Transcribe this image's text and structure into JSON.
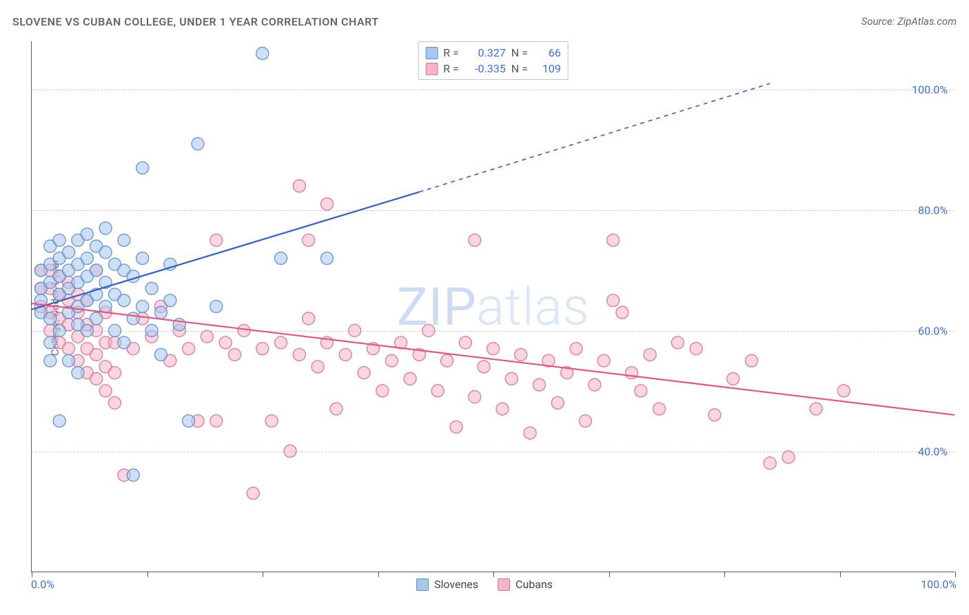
{
  "title": "SLOVENE VS CUBAN COLLEGE, UNDER 1 YEAR CORRELATION CHART",
  "source": "Source: ZipAtlas.com",
  "ylabel": "College, Under 1 year",
  "watermark_zip": "ZIP",
  "watermark_atlas": "atlas",
  "xmin_label": "0.0%",
  "xmax_label": "100.0%",
  "bottom_legend": [
    {
      "label": "Slovenes",
      "fill": "#a9c7eb",
      "stroke": "#5b8fd4"
    },
    {
      "label": "Cubans",
      "fill": "#f4b6c6",
      "stroke": "#e16f94"
    }
  ],
  "corr_box": [
    {
      "fill": "#a9c7eb",
      "stroke": "#5b8fd4",
      "R_label": "R =",
      "R": "0.327",
      "N_label": "N =",
      "N": "66"
    },
    {
      "fill": "#f4b6c6",
      "stroke": "#e16f94",
      "R_label": "R =",
      "R": "-0.335",
      "N_label": "N =",
      "N": "109"
    }
  ],
  "chart": {
    "type": "scatter",
    "xlim": [
      0,
      100
    ],
    "ylim": [
      20,
      108
    ],
    "x_ticks": [
      0,
      12.5,
      25,
      37.5,
      50,
      62.5,
      75,
      87.5,
      100
    ],
    "y_gridlines": [
      40,
      60,
      80,
      100
    ],
    "y_tick_labels": [
      "40.0%",
      "60.0%",
      "80.0%",
      "100.0%"
    ],
    "marker_radius": 9,
    "marker_opacity": 0.55,
    "line_width": 2.2,
    "series": {
      "slovenes": {
        "fill": "#a9c7eb",
        "stroke": "#5b8fd4",
        "line_color": "#2f60c4",
        "trend": {
          "x1": 0,
          "y1": 63.5,
          "x2_solid": 42,
          "y2_solid": 83,
          "x2_dash": 80,
          "y2_dash": 101
        },
        "points": [
          [
            1,
            65
          ],
          [
            1,
            67
          ],
          [
            1,
            70
          ],
          [
            1,
            63
          ],
          [
            2,
            62
          ],
          [
            2,
            68
          ],
          [
            2,
            71
          ],
          [
            2,
            74
          ],
          [
            2,
            58
          ],
          [
            2,
            55
          ],
          [
            3,
            45
          ],
          [
            3,
            60
          ],
          [
            3,
            66
          ],
          [
            3,
            69
          ],
          [
            3,
            72
          ],
          [
            3,
            75
          ],
          [
            4,
            55
          ],
          [
            4,
            63
          ],
          [
            4,
            67
          ],
          [
            4,
            70
          ],
          [
            4,
            73
          ],
          [
            5,
            61
          ],
          [
            5,
            64
          ],
          [
            5,
            68
          ],
          [
            5,
            71
          ],
          [
            5,
            75
          ],
          [
            5,
            53
          ],
          [
            6,
            60
          ],
          [
            6,
            65
          ],
          [
            6,
            69
          ],
          [
            6,
            72
          ],
          [
            6,
            76
          ],
          [
            7,
            62
          ],
          [
            7,
            66
          ],
          [
            7,
            70
          ],
          [
            7,
            74
          ],
          [
            8,
            64
          ],
          [
            8,
            68
          ],
          [
            8,
            73
          ],
          [
            8,
            77
          ],
          [
            9,
            60
          ],
          [
            9,
            66
          ],
          [
            9,
            71
          ],
          [
            10,
            58
          ],
          [
            10,
            65
          ],
          [
            10,
            70
          ],
          [
            10,
            75
          ],
          [
            11,
            62
          ],
          [
            11,
            69
          ],
          [
            11,
            36
          ],
          [
            12,
            64
          ],
          [
            12,
            72
          ],
          [
            12,
            87
          ],
          [
            13,
            60
          ],
          [
            13,
            67
          ],
          [
            14,
            56
          ],
          [
            14,
            63
          ],
          [
            15,
            65
          ],
          [
            15,
            71
          ],
          [
            16,
            61
          ],
          [
            17,
            45
          ],
          [
            18,
            91
          ],
          [
            20,
            64
          ],
          [
            25,
            106
          ],
          [
            27,
            72
          ],
          [
            32,
            72
          ]
        ]
      },
      "cubans": {
        "fill": "#f4b6c6",
        "stroke": "#e16f94",
        "line_color": "#e7557e",
        "trend": {
          "x1": 0,
          "y1": 64.5,
          "x2_solid": 100,
          "y2_solid": 46
        },
        "points": [
          [
            1,
            64
          ],
          [
            1,
            67
          ],
          [
            1,
            70
          ],
          [
            2,
            60
          ],
          [
            2,
            63
          ],
          [
            2,
            67
          ],
          [
            2,
            70
          ],
          [
            3,
            58
          ],
          [
            3,
            62
          ],
          [
            3,
            66
          ],
          [
            3,
            69
          ],
          [
            4,
            57
          ],
          [
            4,
            61
          ],
          [
            4,
            65
          ],
          [
            4,
            68
          ],
          [
            5,
            55
          ],
          [
            5,
            59
          ],
          [
            5,
            63
          ],
          [
            5,
            66
          ],
          [
            6,
            53
          ],
          [
            6,
            57
          ],
          [
            6,
            61
          ],
          [
            6,
            65
          ],
          [
            7,
            52
          ],
          [
            7,
            56
          ],
          [
            7,
            60
          ],
          [
            7,
            70
          ],
          [
            8,
            50
          ],
          [
            8,
            54
          ],
          [
            8,
            58
          ],
          [
            8,
            63
          ],
          [
            9,
            48
          ],
          [
            9,
            53
          ],
          [
            9,
            58
          ],
          [
            10,
            36
          ],
          [
            11,
            57
          ],
          [
            12,
            62
          ],
          [
            13,
            59
          ],
          [
            14,
            64
          ],
          [
            15,
            55
          ],
          [
            16,
            60
          ],
          [
            17,
            57
          ],
          [
            18,
            45
          ],
          [
            19,
            59
          ],
          [
            20,
            45
          ],
          [
            20,
            75
          ],
          [
            21,
            58
          ],
          [
            22,
            56
          ],
          [
            23,
            60
          ],
          [
            24,
            33
          ],
          [
            25,
            57
          ],
          [
            26,
            45
          ],
          [
            27,
            58
          ],
          [
            28,
            40
          ],
          [
            29,
            56
          ],
          [
            29,
            84
          ],
          [
            30,
            62
          ],
          [
            30,
            75
          ],
          [
            31,
            54
          ],
          [
            32,
            58
          ],
          [
            32,
            81
          ],
          [
            33,
            47
          ],
          [
            34,
            56
          ],
          [
            35,
            60
          ],
          [
            36,
            53
          ],
          [
            37,
            57
          ],
          [
            38,
            50
          ],
          [
            39,
            55
          ],
          [
            40,
            58
          ],
          [
            41,
            52
          ],
          [
            42,
            56
          ],
          [
            43,
            60
          ],
          [
            44,
            50
          ],
          [
            45,
            55
          ],
          [
            46,
            44
          ],
          [
            47,
            58
          ],
          [
            48,
            49
          ],
          [
            48,
            75
          ],
          [
            49,
            54
          ],
          [
            50,
            57
          ],
          [
            51,
            47
          ],
          [
            52,
            52
          ],
          [
            53,
            56
          ],
          [
            54,
            43
          ],
          [
            55,
            51
          ],
          [
            56,
            55
          ],
          [
            57,
            48
          ],
          [
            58,
            53
          ],
          [
            59,
            57
          ],
          [
            60,
            45
          ],
          [
            61,
            51
          ],
          [
            62,
            55
          ],
          [
            63,
            75
          ],
          [
            63,
            65
          ],
          [
            64,
            63
          ],
          [
            65,
            53
          ],
          [
            66,
            50
          ],
          [
            67,
            56
          ],
          [
            68,
            47
          ],
          [
            70,
            58
          ],
          [
            72,
            57
          ],
          [
            74,
            46
          ],
          [
            76,
            52
          ],
          [
            78,
            55
          ],
          [
            80,
            38
          ],
          [
            82,
            39
          ],
          [
            85,
            47
          ],
          [
            88,
            50
          ]
        ]
      }
    }
  }
}
